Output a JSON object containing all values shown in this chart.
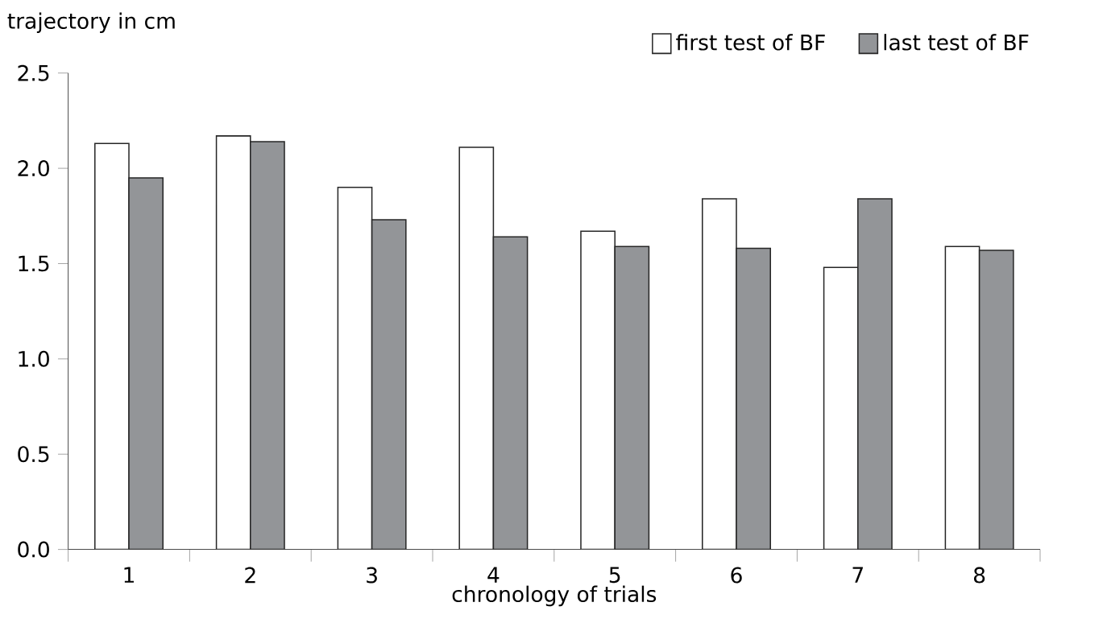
{
  "chart_data": {
    "type": "bar",
    "xlabel": "chronology of trials",
    "ylabel": "trajectory in cm",
    "categories": [
      "1",
      "2",
      "3",
      "4",
      "5",
      "6",
      "7",
      "8"
    ],
    "series": [
      {
        "name": "first test of BF",
        "color": "#ffffff",
        "values": [
          2.13,
          2.17,
          1.9,
          2.11,
          1.67,
          1.84,
          1.48,
          1.59
        ]
      },
      {
        "name": "last test of BF",
        "color": "#939598",
        "values": [
          1.95,
          2.14,
          1.73,
          1.64,
          1.59,
          1.58,
          1.84,
          1.57
        ]
      }
    ],
    "ylim": [
      0,
      2.5
    ],
    "yticks": [
      {
        "value": 0,
        "label": "0.0"
      },
      {
        "value": 0.5,
        "label": "0.5"
      },
      {
        "value": 1,
        "label": "1.0"
      },
      {
        "value": 1.5,
        "label": "1.5"
      },
      {
        "value": 2,
        "label": "2.0"
      },
      {
        "value": 2.5,
        "label": "2.5"
      }
    ],
    "legend": "top right",
    "grid": false
  }
}
